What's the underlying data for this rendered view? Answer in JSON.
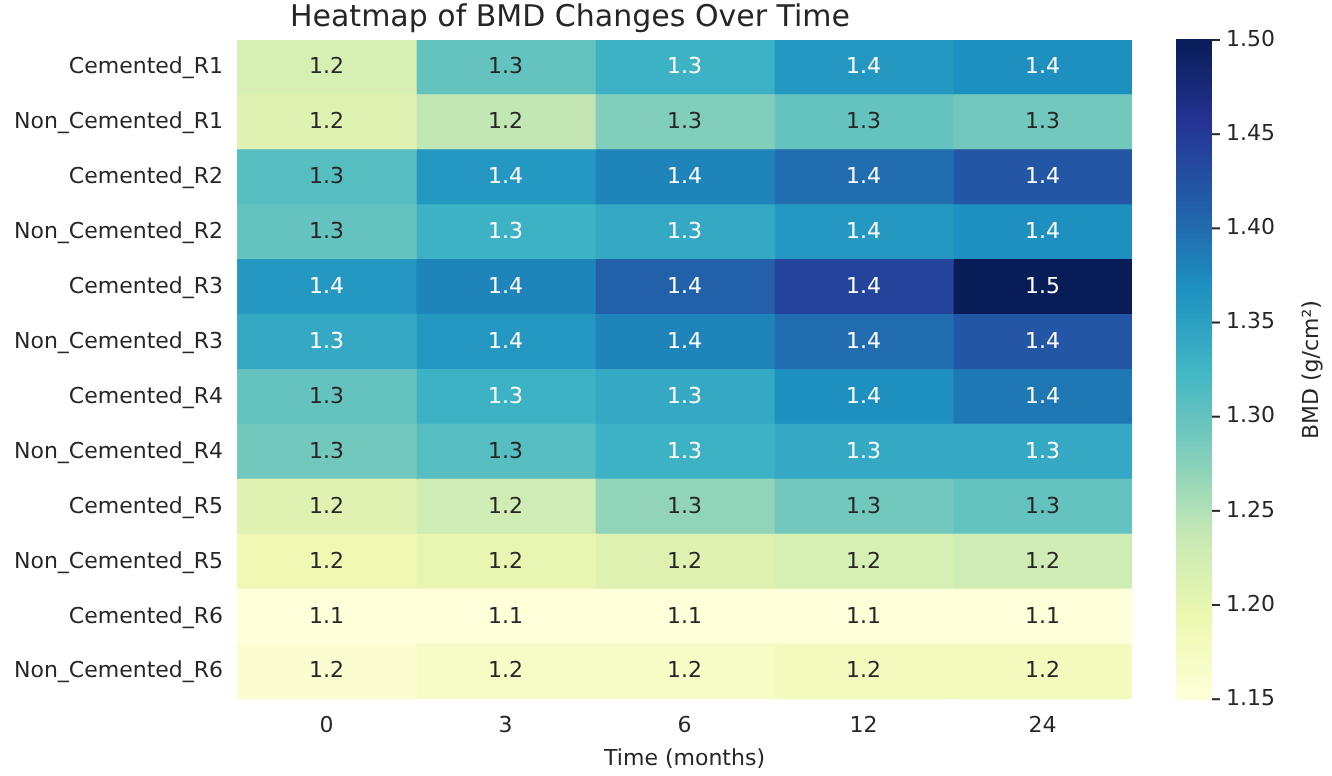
{
  "chart_data": {
    "type": "heatmap",
    "title": "Heatmap of BMD Changes Over Time",
    "xlabel": "Time (months)",
    "clabel": "BMD (g/cm²)",
    "categories": [
      "0",
      "3",
      "6",
      "12",
      "24"
    ],
    "y_categories": [
      "Cemented_R1",
      "Non_Cemented_R1",
      "Cemented_R2",
      "Non_Cemented_R2",
      "Cemented_R3",
      "Non_Cemented_R3",
      "Cemented_R4",
      "Non_Cemented_R4",
      "Cemented_R5",
      "Non_Cemented_R5",
      "Cemented_R6",
      "Non_Cemented_R6"
    ],
    "cells": [
      [
        1.22,
        1.3,
        1.33,
        1.36,
        1.37
      ],
      [
        1.21,
        1.24,
        1.28,
        1.3,
        1.29
      ],
      [
        1.31,
        1.36,
        1.38,
        1.4,
        1.42
      ],
      [
        1.3,
        1.33,
        1.34,
        1.36,
        1.37
      ],
      [
        1.36,
        1.38,
        1.41,
        1.44,
        1.5
      ],
      [
        1.34,
        1.36,
        1.38,
        1.4,
        1.42
      ],
      [
        1.3,
        1.33,
        1.34,
        1.37,
        1.39
      ],
      [
        1.29,
        1.31,
        1.33,
        1.34,
        1.34
      ],
      [
        1.21,
        1.23,
        1.27,
        1.29,
        1.3
      ],
      [
        1.19,
        1.2,
        1.21,
        1.22,
        1.23
      ],
      [
        1.15,
        1.15,
        1.15,
        1.15,
        1.15
      ],
      [
        1.16,
        1.17,
        1.17,
        1.18,
        1.18
      ]
    ],
    "cell_labels": [
      [
        "1.2",
        "1.3",
        "1.3",
        "1.4",
        "1.4"
      ],
      [
        "1.2",
        "1.2",
        "1.3",
        "1.3",
        "1.3"
      ],
      [
        "1.3",
        "1.4",
        "1.4",
        "1.4",
        "1.4"
      ],
      [
        "1.3",
        "1.3",
        "1.3",
        "1.4",
        "1.4"
      ],
      [
        "1.4",
        "1.4",
        "1.4",
        "1.4",
        "1.5"
      ],
      [
        "1.3",
        "1.4",
        "1.4",
        "1.4",
        "1.4"
      ],
      [
        "1.3",
        "1.3",
        "1.3",
        "1.4",
        "1.4"
      ],
      [
        "1.3",
        "1.3",
        "1.3",
        "1.3",
        "1.3"
      ],
      [
        "1.2",
        "1.2",
        "1.3",
        "1.3",
        "1.3"
      ],
      [
        "1.2",
        "1.2",
        "1.2",
        "1.2",
        "1.2"
      ],
      [
        "1.1",
        "1.1",
        "1.1",
        "1.1",
        "1.1"
      ],
      [
        "1.2",
        "1.2",
        "1.2",
        "1.2",
        "1.2"
      ]
    ],
    "clim": [
      1.15,
      1.5
    ],
    "cticks": [
      {
        "value": 1.15,
        "label": "1.15"
      },
      {
        "value": 1.2,
        "label": "1.20"
      },
      {
        "value": 1.25,
        "label": "1.25"
      },
      {
        "value": 1.3,
        "label": "1.30"
      },
      {
        "value": 1.35,
        "label": "1.35"
      },
      {
        "value": 1.4,
        "label": "1.40"
      },
      {
        "value": 1.45,
        "label": "1.45"
      },
      {
        "value": 1.5,
        "label": "1.50"
      }
    ]
  }
}
